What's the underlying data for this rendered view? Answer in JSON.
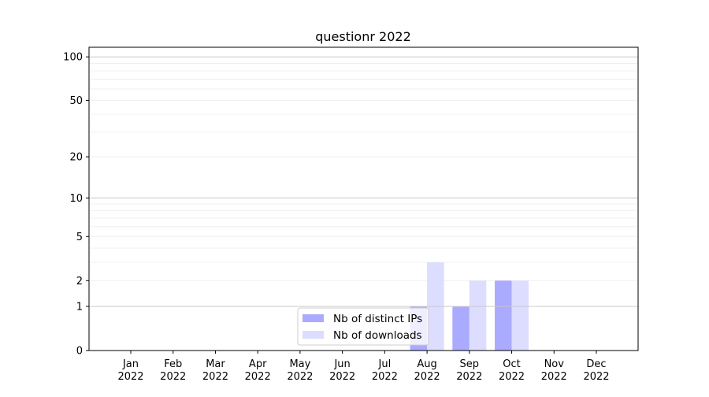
{
  "chart_data": {
    "type": "bar",
    "title": "questionr 2022",
    "xlabel": "",
    "ylabel": "",
    "y_scale": "symlog (log10(1+y))",
    "ylim": [
      0,
      116
    ],
    "yticks": [
      0,
      1,
      2,
      5,
      10,
      20,
      50,
      100
    ],
    "ytick_labels": [
      "0",
      "1",
      "2",
      "5",
      "10",
      "20",
      "50",
      "100"
    ],
    "grid": true,
    "legend_position": "bottom-center",
    "categories": [
      "Jan\n2022",
      "Feb\n2022",
      "Mar\n2022",
      "Apr\n2022",
      "May\n2022",
      "Jun\n2022",
      "Jul\n2022",
      "Aug\n2022",
      "Sep\n2022",
      "Oct\n2022",
      "Nov\n2022",
      "Dec\n2022"
    ],
    "category_labels": [
      [
        "Jan",
        "2022"
      ],
      [
        "Feb",
        "2022"
      ],
      [
        "Mar",
        "2022"
      ],
      [
        "Apr",
        "2022"
      ],
      [
        "May",
        "2022"
      ],
      [
        "Jun",
        "2022"
      ],
      [
        "Jul",
        "2022"
      ],
      [
        "Aug",
        "2022"
      ],
      [
        "Sep",
        "2022"
      ],
      [
        "Oct",
        "2022"
      ],
      [
        "Nov",
        "2022"
      ],
      [
        "Dec",
        "2022"
      ]
    ],
    "series": [
      {
        "name": "Nb of distinct IPs",
        "color": "#aaaaff",
        "values": [
          0,
          0,
          0,
          0,
          0,
          0,
          0,
          1,
          1,
          2,
          0,
          0
        ]
      },
      {
        "name": "Nb of downloads",
        "color": "#ddddff",
        "values": [
          0,
          0,
          0,
          0,
          0,
          0,
          0,
          3,
          2,
          2,
          0,
          0
        ]
      }
    ]
  }
}
